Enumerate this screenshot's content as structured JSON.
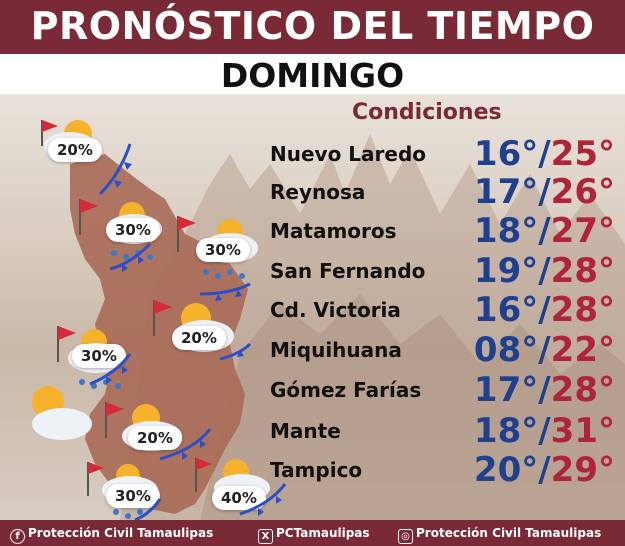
{
  "header": {
    "title": "PRONÓSTICO DEL TIEMPO",
    "day": "DOMINGO"
  },
  "conditions_label": "Condiciones",
  "cities": [
    {
      "name": "Nuevo Laredo",
      "min": "16°",
      "max": "25°"
    },
    {
      "name": "Reynosa",
      "min": "17°",
      "max": "26°"
    },
    {
      "name": "Matamoros",
      "min": "18°",
      "max": "27°"
    },
    {
      "name": "San Fernando",
      "min": "19°",
      "max": "28°"
    },
    {
      "name": "Cd. Victoria",
      "min": "16°",
      "max": "28°"
    },
    {
      "name": "Miquihuana",
      "min": "08°",
      "max": "22°"
    },
    {
      "name": "Gómez Farías",
      "min": "17°",
      "max": "28°"
    },
    {
      "name": "Mante",
      "min": "18°",
      "max": "31°"
    },
    {
      "name": "Tampico",
      "min": "20°",
      "max": "29°"
    }
  ],
  "separator": "/",
  "map_percentages": [
    "20%",
    "30%",
    "30%",
    "20%",
    "30%",
    "20%",
    "30%",
    "40%"
  ],
  "footer": {
    "facebook": "Protección Civil Tamaulipas",
    "x": "PCTamaulipas",
    "instagram": "Protección Civil Tamaulipas"
  },
  "colors": {
    "brand": "#7a2a36",
    "min_temp": "#1f3f8f",
    "max_temp": "#b0243a",
    "map": "#a86a56"
  }
}
